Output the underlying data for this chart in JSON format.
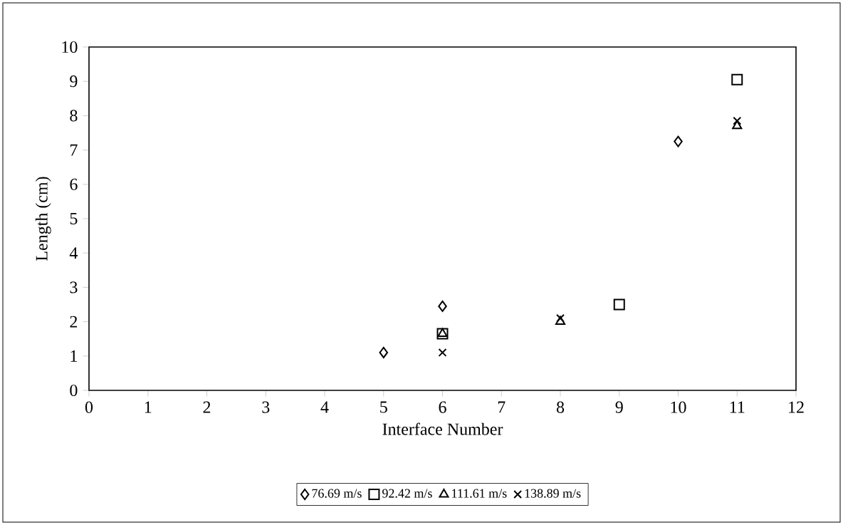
{
  "chart_data": {
    "type": "scatter",
    "xlabel": "Interface Number",
    "ylabel": "Length (cm)",
    "xlim": [
      0,
      12
    ],
    "xticks": [
      0,
      1,
      2,
      3,
      4,
      5,
      6,
      7,
      8,
      9,
      10,
      11,
      12
    ],
    "ylim": [
      0,
      10
    ],
    "yticks": [
      0,
      1,
      2,
      3,
      4,
      5,
      6,
      7,
      8,
      9,
      10
    ],
    "grid": false,
    "legend": "bottom",
    "series": [
      {
        "name": "76.69 m/s",
        "color": "#000000",
        "marker": "diamond",
        "x": [
          5,
          6,
          10
        ],
        "values": [
          1.1,
          2.45,
          7.25
        ]
      },
      {
        "name": "92.42 m/s",
        "color": "#000000",
        "marker": "square",
        "x": [
          6,
          9,
          11
        ],
        "values": [
          1.65,
          2.5,
          9.05
        ]
      },
      {
        "name": "111.61 m/s",
        "color": "#000000",
        "marker": "triangle",
        "x": [
          6,
          8,
          11
        ],
        "values": [
          1.65,
          2.0,
          7.7
        ]
      },
      {
        "name": "138.89 m/s",
        "color": "#000000",
        "marker": "cross",
        "x": [
          6,
          8,
          11
        ],
        "values": [
          1.1,
          2.1,
          7.85
        ]
      }
    ]
  }
}
